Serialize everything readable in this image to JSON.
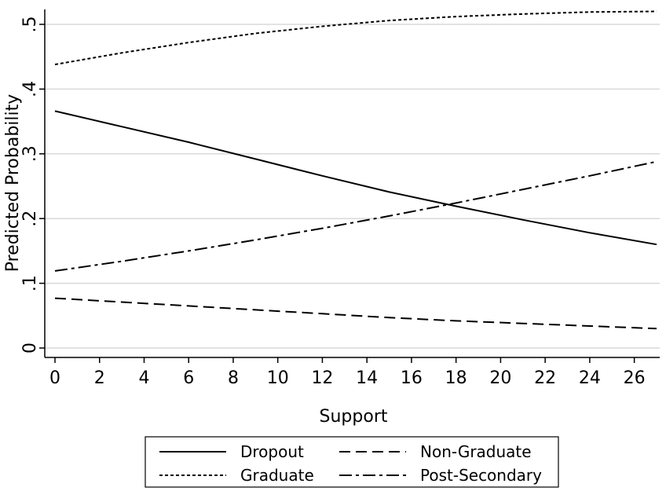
{
  "chart_data": {
    "type": "line",
    "xlabel": "Support",
    "ylabel": "Predicted Probability",
    "xlim": [
      0,
      27
    ],
    "ylim": [
      0,
      0.52
    ],
    "x_ticks": [
      0,
      2,
      4,
      6,
      8,
      10,
      12,
      14,
      16,
      18,
      20,
      22,
      24,
      26
    ],
    "x_tick_labels": [
      "0",
      "2",
      "4",
      "6",
      "8",
      "10",
      "12",
      "14",
      "16",
      "18",
      "20",
      "22",
      "24",
      "26"
    ],
    "y_ticks": [
      0,
      0.1,
      0.2,
      0.3,
      0.4,
      0.5
    ],
    "y_tick_labels": [
      "0",
      ".1",
      ".2",
      ".3",
      ".4",
      ".5"
    ],
    "grid": "horizontal",
    "legend_position": "bottom",
    "series": [
      {
        "name": "Dropout",
        "style": "solid",
        "x": [
          0,
          3,
          6,
          9,
          12,
          15,
          18,
          21,
          24,
          27
        ],
        "y": [
          0.366,
          0.342,
          0.318,
          0.292,
          0.266,
          0.241,
          0.219,
          0.198,
          0.178,
          0.16
        ]
      },
      {
        "name": "Non-Graduate",
        "style": "dashed",
        "x": [
          0,
          3,
          6,
          9,
          12,
          15,
          18,
          21,
          24,
          27
        ],
        "y": [
          0.077,
          0.071,
          0.065,
          0.059,
          0.053,
          0.047,
          0.042,
          0.038,
          0.034,
          0.03
        ]
      },
      {
        "name": "Graduate",
        "style": "dotted",
        "x": [
          0,
          3,
          6,
          9,
          12,
          15,
          18,
          21,
          24,
          27
        ],
        "y": [
          0.438,
          0.456,
          0.472,
          0.486,
          0.497,
          0.506,
          0.512,
          0.516,
          0.519,
          0.52
        ]
      },
      {
        "name": "Post-Secondary",
        "style": "dashdot",
        "x": [
          0,
          3,
          6,
          9,
          12,
          15,
          18,
          21,
          24,
          27
        ],
        "y": [
          0.119,
          0.134,
          0.15,
          0.167,
          0.185,
          0.204,
          0.224,
          0.245,
          0.266,
          0.288
        ]
      }
    ]
  }
}
